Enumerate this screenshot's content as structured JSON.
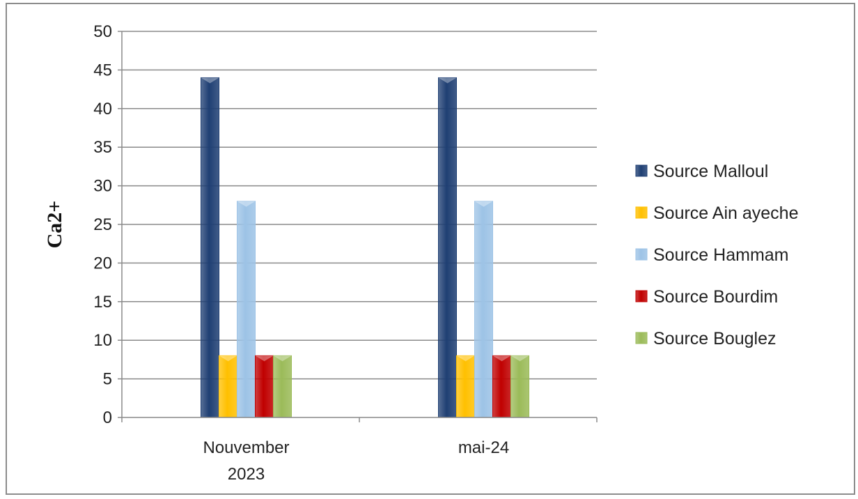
{
  "chart_data": {
    "type": "bar",
    "title": "",
    "xlabel": "",
    "ylabel": "Ca2+",
    "ylim": [
      0,
      50
    ],
    "yticks": [
      0,
      5,
      10,
      15,
      20,
      25,
      30,
      35,
      40,
      45,
      50
    ],
    "categories": [
      [
        "Nouvember",
        "2023"
      ],
      [
        "mai-24"
      ]
    ],
    "grid": "horizontal",
    "legend_position": "right",
    "series": [
      {
        "name": "Source Malloul",
        "color": "#1f3f73",
        "values": [
          44,
          44
        ]
      },
      {
        "name": "Source Ain ayeche",
        "color": "#ffc000",
        "values": [
          8,
          8
        ]
      },
      {
        "name": "Source Hammam",
        "color": "#9dc3e6",
        "values": [
          28,
          28
        ]
      },
      {
        "name": "Source Bourdim",
        "color": "#c00000",
        "values": [
          8,
          8
        ]
      },
      {
        "name": "Source Bouglez",
        "color": "#9bbb59",
        "values": [
          8,
          8
        ]
      }
    ]
  }
}
